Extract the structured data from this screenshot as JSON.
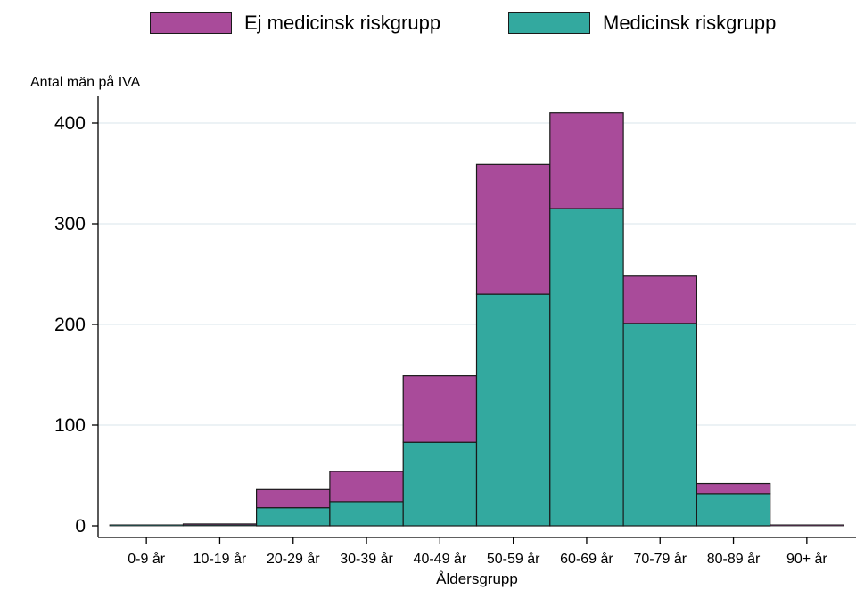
{
  "chart_data": {
    "type": "bar",
    "stacked": true,
    "title": "",
    "ylabel": "Antal män på IVA",
    "xlabel": "Åldersgrupp",
    "ylim": [
      0,
      420
    ],
    "yticks": [
      0,
      100,
      200,
      300,
      400
    ],
    "grid": true,
    "legend_placement": "top",
    "categories": [
      "0-9 år",
      "10-19 år",
      "20-29 år",
      "30-39 år",
      "40-49 år",
      "50-59 år",
      "60-69 år",
      "70-79 år",
      "80-89 år",
      "90+ år"
    ],
    "series": [
      {
        "name": "Medicinsk riskgrupp",
        "color": "#33a99f",
        "values": [
          1,
          1,
          18,
          24,
          83,
          230,
          315,
          201,
          32,
          0
        ]
      },
      {
        "name": "Ej medicinsk riskgrupp",
        "color": "#a94b9a",
        "values": [
          0,
          1,
          18,
          30,
          66,
          129,
          95,
          47,
          10,
          1
        ]
      }
    ]
  },
  "legend": [
    {
      "label": "Ej medicinsk riskgrupp",
      "color": "#a94b9a"
    },
    {
      "label": "Medicinsk riskgrupp",
      "color": "#33a99f"
    }
  ]
}
